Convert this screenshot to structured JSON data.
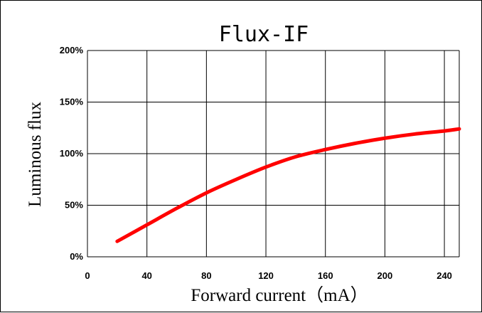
{
  "chart_data": {
    "type": "line",
    "title": "Flux-IF",
    "xlabel": "Forward current（mA）",
    "ylabel": "Luminous flux",
    "xlim": [
      0,
      250
    ],
    "ylim": [
      0,
      200
    ],
    "x_ticks": [
      "0",
      "40",
      "80",
      "120",
      "160",
      "200",
      "240"
    ],
    "y_ticks": [
      "0%",
      "50%",
      "100%",
      "150%",
      "200%"
    ],
    "grid": true,
    "series": [
      {
        "color": "#ff0000",
        "x": [
          20,
          40,
          60,
          80,
          100,
          120,
          140,
          160,
          180,
          200,
          220,
          240,
          250
        ],
        "values": [
          15,
          31,
          47,
          62,
          75,
          87,
          97,
          104,
          110,
          115,
          119,
          122,
          124
        ]
      }
    ]
  }
}
